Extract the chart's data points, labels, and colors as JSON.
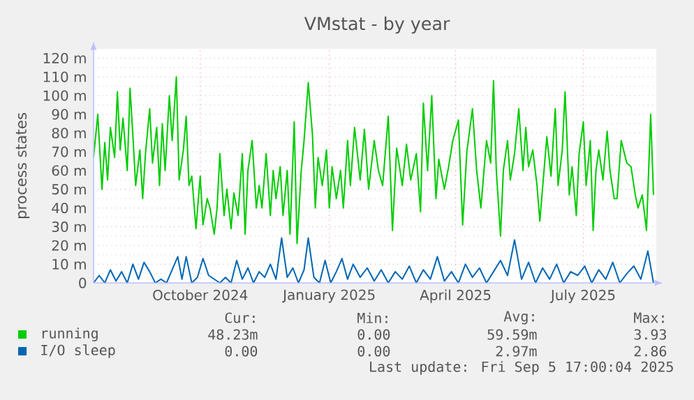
{
  "chart_data": {
    "type": "line",
    "title": "VMstat - by year",
    "ylabel": "process states",
    "xlim": [
      "2024-07-31",
      "2025-09-05"
    ],
    "xticks": [
      {
        "value": "2024-10-15",
        "label": "October 2024"
      },
      {
        "value": "2025-01-15",
        "label": "January 2025"
      },
      {
        "value": "2025-04-15",
        "label": "April 2025"
      },
      {
        "value": "2025-07-15",
        "label": "July 2025"
      }
    ],
    "ylim": [
      0,
      125
    ],
    "yticks": [
      0,
      {
        "value": 10,
        "label": "10 m"
      },
      {
        "value": 20,
        "label": "20 m"
      },
      {
        "value": 30,
        "label": "30 m"
      },
      {
        "value": 40,
        "label": "40 m"
      },
      {
        "value": 50,
        "label": "50 m"
      },
      {
        "value": 60,
        "label": "60 m"
      },
      {
        "value": 70,
        "label": "70 m"
      },
      {
        "value": 80,
        "label": "80 m"
      },
      {
        "value": 90,
        "label": "90 m"
      },
      {
        "value": 100,
        "label": "100 m"
      },
      {
        "value": 110,
        "label": "110 m"
      },
      {
        "value": 120,
        "label": "120 m"
      }
    ],
    "grid": true,
    "legend": "bottom",
    "series": [
      {
        "name": "running",
        "color": "#00cc00",
        "x": [
          "2024-07-31",
          "2024-08-03",
          "2024-08-06",
          "2024-08-08",
          "2024-08-10",
          "2024-08-12",
          "2024-08-15",
          "2024-08-17",
          "2024-08-19",
          "2024-08-21",
          "2024-08-24",
          "2024-08-26",
          "2024-08-28",
          "2024-08-30",
          "2024-09-02",
          "2024-09-04",
          "2024-09-06",
          "2024-09-09",
          "2024-09-11",
          "2024-09-14",
          "2024-09-16",
          "2024-09-18",
          "2024-09-20",
          "2024-09-23",
          "2024-09-25",
          "2024-09-28",
          "2024-09-30",
          "2024-10-03",
          "2024-10-05",
          "2024-10-07",
          "2024-10-09",
          "2024-10-12",
          "2024-10-15",
          "2024-10-17",
          "2024-10-20",
          "2024-10-22",
          "2024-10-25",
          "2024-10-27",
          "2024-10-29",
          "2024-11-01",
          "2024-11-03",
          "2024-11-06",
          "2024-11-08",
          "2024-11-11",
          "2024-11-14",
          "2024-11-16",
          "2024-11-18",
          "2024-11-21",
          "2024-11-24",
          "2024-11-26",
          "2024-11-28",
          "2024-12-01",
          "2024-12-04",
          "2024-12-06",
          "2024-12-08",
          "2024-12-11",
          "2024-12-13",
          "2024-12-16",
          "2024-12-18",
          "2024-12-21",
          "2024-12-23",
          "2024-12-26",
          "2024-12-28",
          "2024-12-31",
          "2025-01-03",
          "2025-01-05",
          "2025-01-07",
          "2025-01-10",
          "2025-01-13",
          "2025-01-15",
          "2025-01-17",
          "2025-01-20",
          "2025-01-23",
          "2025-01-25",
          "2025-01-28",
          "2025-01-30",
          "2025-02-02",
          "2025-02-06",
          "2025-02-09",
          "2025-02-12",
          "2025-02-16",
          "2025-02-19",
          "2025-02-22",
          "2025-02-26",
          "2025-03-01",
          "2025-03-04",
          "2025-03-08",
          "2025-03-11",
          "2025-03-14",
          "2025-03-18",
          "2025-03-21",
          "2025-03-23",
          "2025-03-26",
          "2025-03-29",
          "2025-04-01",
          "2025-04-03",
          "2025-04-07",
          "2025-04-10",
          "2025-04-13",
          "2025-04-17",
          "2025-04-20",
          "2025-04-23",
          "2025-04-27",
          "2025-04-30",
          "2025-05-03",
          "2025-05-07",
          "2025-05-10",
          "2025-05-12",
          "2025-05-14",
          "2025-05-17",
          "2025-05-19",
          "2025-05-22",
          "2025-05-24",
          "2025-05-27",
          "2025-05-30",
          "2025-06-02",
          "2025-06-04",
          "2025-06-06",
          "2025-06-09",
          "2025-06-12",
          "2025-06-14",
          "2025-06-17",
          "2025-06-19",
          "2025-06-22",
          "2025-06-25",
          "2025-06-27",
          "2025-06-30",
          "2025-07-02",
          "2025-07-05",
          "2025-07-07",
          "2025-07-10",
          "2025-07-12",
          "2025-07-15",
          "2025-07-17",
          "2025-07-20",
          "2025-07-22",
          "2025-07-24",
          "2025-07-26",
          "2025-07-29",
          "2025-08-01",
          "2025-08-03",
          "2025-08-06",
          "2025-08-08",
          "2025-08-11",
          "2025-08-15",
          "2025-08-18",
          "2025-08-21",
          "2025-08-23",
          "2025-08-26",
          "2025-08-29",
          "2025-08-31",
          "2025-09-01",
          "2025-09-03"
        ],
        "values": [
          67,
          90,
          50,
          75,
          55,
          83,
          67,
          102,
          71,
          88,
          60,
          104,
          79,
          52,
          71,
          45,
          69,
          93,
          64,
          83,
          52,
          85,
          60,
          100,
          76,
          110,
          55,
          71,
          89,
          52,
          57,
          29,
          57,
          31,
          45,
          40,
          26,
          40,
          69,
          36,
          50,
          29,
          48,
          36,
          69,
          26,
          60,
          76,
          40,
          52,
          40,
          69,
          36,
          60,
          45,
          62,
          36,
          60,
          26,
          86,
          21,
          60,
          76,
          107,
          79,
          40,
          67,
          52,
          71,
          40,
          62,
          45,
          60,
          40,
          76,
          52,
          83,
          55,
          82,
          50,
          76,
          60,
          52,
          89,
          28,
          72,
          52,
          74,
          55,
          69,
          38,
          96,
          60,
          100,
          45,
          66,
          50,
          62,
          76,
          87,
          31,
          70,
          93,
          60,
          40,
          76,
          64,
          108,
          60,
          25,
          60,
          76,
          55,
          69,
          93,
          60,
          83,
          62,
          71,
          52,
          33,
          60,
          78,
          57,
          93,
          52,
          71,
          102,
          47,
          62,
          36,
          69,
          86,
          52,
          76,
          28,
          60,
          71,
          55,
          81,
          60,
          45,
          45,
          76,
          64,
          62,
          47,
          40,
          47,
          28,
          69,
          90,
          47
        ]
      },
      {
        "name": "I/O sleep",
        "color": "#0066b3",
        "x": [
          "2024-07-31",
          "2024-08-04",
          "2024-08-08",
          "2024-08-12",
          "2024-08-16",
          "2024-08-20",
          "2024-08-24",
          "2024-08-28",
          "2024-09-01",
          "2024-09-05",
          "2024-09-09",
          "2024-09-13",
          "2024-09-17",
          "2024-09-21",
          "2024-09-25",
          "2024-09-29",
          "2024-10-02",
          "2024-10-05",
          "2024-10-09",
          "2024-10-13",
          "2024-10-17",
          "2024-10-21",
          "2024-10-25",
          "2024-10-29",
          "2024-11-02",
          "2024-11-06",
          "2024-11-10",
          "2024-11-14",
          "2024-11-18",
          "2024-11-22",
          "2024-11-26",
          "2024-11-30",
          "2024-12-04",
          "2024-12-08",
          "2024-12-12",
          "2024-12-16",
          "2024-12-20",
          "2024-12-24",
          "2024-12-28",
          "2024-12-31",
          "2025-01-04",
          "2025-01-08",
          "2025-01-12",
          "2025-01-16",
          "2025-01-20",
          "2025-01-24",
          "2025-01-28",
          "2025-02-01",
          "2025-02-06",
          "2025-02-11",
          "2025-02-16",
          "2025-02-21",
          "2025-02-26",
          "2025-03-03",
          "2025-03-08",
          "2025-03-13",
          "2025-03-18",
          "2025-03-23",
          "2025-03-28",
          "2025-04-02",
          "2025-04-07",
          "2025-04-12",
          "2025-04-17",
          "2025-04-22",
          "2025-04-27",
          "2025-05-02",
          "2025-05-07",
          "2025-05-12",
          "2025-05-17",
          "2025-05-22",
          "2025-05-27",
          "2025-06-01",
          "2025-06-06",
          "2025-06-11",
          "2025-06-16",
          "2025-06-21",
          "2025-06-26",
          "2025-07-01",
          "2025-07-06",
          "2025-07-11",
          "2025-07-16",
          "2025-07-21",
          "2025-07-26",
          "2025-07-31",
          "2025-08-05",
          "2025-08-10",
          "2025-08-15",
          "2025-08-20",
          "2025-08-25",
          "2025-08-30",
          "2025-09-03"
        ],
        "values": [
          0,
          4,
          0,
          7,
          1,
          6,
          0,
          10,
          2,
          11,
          6,
          0,
          2,
          0,
          7,
          14,
          2,
          14,
          0,
          3,
          13,
          4,
          2,
          0,
          3,
          0,
          12,
          2,
          8,
          0,
          6,
          3,
          10,
          2,
          24,
          3,
          8,
          0,
          7,
          24,
          3,
          0,
          12,
          0,
          6,
          13,
          2,
          10,
          3,
          8,
          1,
          7,
          0,
          6,
          2,
          9,
          0,
          7,
          2,
          14,
          1,
          6,
          0,
          10,
          3,
          8,
          0,
          6,
          12,
          4,
          23,
          2,
          11,
          0,
          8,
          2,
          10,
          0,
          6,
          4,
          9,
          0,
          7,
          2,
          11,
          0,
          5,
          9,
          2,
          17,
          0
        ]
      }
    ],
    "annotations": [
      "Cur:",
      "Min:",
      "Avg:",
      "Max:",
      "48.23m",
      "0.00",
      "59.59m",
      "3.93",
      "0.00",
      "0.00",
      "2.97m",
      "2.86",
      "Last update: Fri Sep  5 17:00:04 2025"
    ]
  }
}
